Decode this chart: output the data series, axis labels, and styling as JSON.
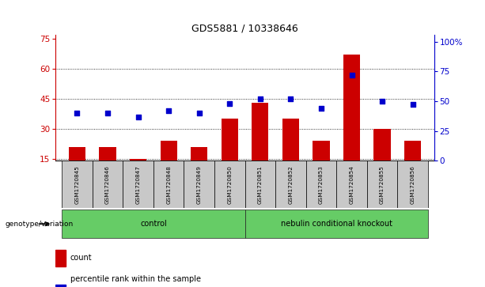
{
  "title": "GDS5881 / 10338646",
  "samples": [
    "GSM1720845",
    "GSM1720846",
    "GSM1720847",
    "GSM1720848",
    "GSM1720849",
    "GSM1720850",
    "GSM1720851",
    "GSM1720852",
    "GSM1720853",
    "GSM1720854",
    "GSM1720855",
    "GSM1720856"
  ],
  "counts": [
    21,
    21,
    15,
    24,
    21,
    35,
    43,
    35,
    24,
    67,
    30,
    24
  ],
  "percentile_ranks": [
    40,
    40,
    37,
    42,
    40,
    48,
    52,
    52,
    44,
    72,
    50,
    47
  ],
  "left_yticks": [
    15,
    30,
    45,
    60,
    75
  ],
  "right_yticks": [
    0,
    25,
    50,
    75,
    100
  ],
  "ylim_left": [
    14,
    77
  ],
  "bar_color": "#cc0000",
  "dot_color": "#0000cc",
  "background_color": "#ffffff",
  "sample_bg_color": "#c8c8c8",
  "green_color": "#66cc66",
  "legend_count_label": "count",
  "legend_percentile_label": "percentile rank within the sample",
  "genotype_label": "genotype/variation",
  "group_labels": [
    "control",
    "nebulin conditional knockout"
  ],
  "group_starts": [
    0,
    6
  ],
  "group_ends": [
    6,
    12
  ]
}
